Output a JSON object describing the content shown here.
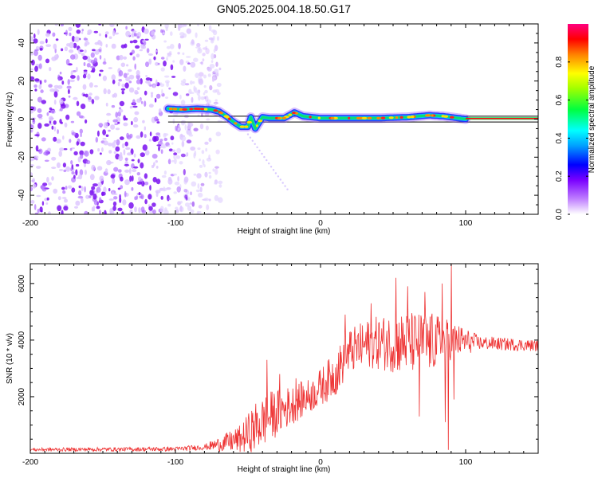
{
  "title": "GN05.2025.004.18.50.G17",
  "chart_data": [
    {
      "type": "heatmap",
      "xlabel": "Height of straight line (km)",
      "ylabel": "Frequency (Hz)",
      "xlim": [
        -200,
        150
      ],
      "ylim": [
        -50,
        50
      ],
      "xticks": [
        -200,
        -100,
        0,
        100
      ],
      "yticks": [
        -40,
        -20,
        0,
        20,
        40
      ],
      "colorbar": {
        "label": "Normalized spectral amplitude",
        "range": [
          0,
          1
        ],
        "ticks": [
          "0.0",
          "0.2",
          "0.4",
          "0.6",
          "0.8"
        ]
      },
      "noise_region_x": [
        -200,
        -77
      ],
      "signal_track": [
        {
          "x": -105,
          "f": 5.5
        },
        {
          "x": -95,
          "f": 5
        },
        {
          "x": -85,
          "f": 5.5
        },
        {
          "x": -75,
          "f": 5
        },
        {
          "x": -70,
          "f": 4
        },
        {
          "x": -65,
          "f": 1.5
        },
        {
          "x": -60,
          "f": -1.5
        },
        {
          "x": -55,
          "f": -4
        },
        {
          "x": -50,
          "f": -4
        },
        {
          "x": -48,
          "f": 1
        },
        {
          "x": -45,
          "f": -5
        },
        {
          "x": -40,
          "f": 1
        },
        {
          "x": -35,
          "f": 0.5
        },
        {
          "x": -25,
          "f": 0.5
        },
        {
          "x": -18,
          "f": 3.5
        },
        {
          "x": -12,
          "f": 1.5
        },
        {
          "x": 0,
          "f": 0.5
        },
        {
          "x": 20,
          "f": 0.5
        },
        {
          "x": 40,
          "f": 0.5
        },
        {
          "x": 60,
          "f": 1
        },
        {
          "x": 75,
          "f": 2
        },
        {
          "x": 85,
          "f": 1.5
        },
        {
          "x": 100,
          "f": 0
        },
        {
          "x": 150,
          "f": 0
        }
      ],
      "reference_lines_hz": [
        1.5,
        -1.5
      ]
    },
    {
      "type": "line",
      "xlabel": "Height of straight line (km)",
      "ylabel": "SNR (10 * v/v)",
      "xlim": [
        -200,
        150
      ],
      "ylim": [
        0,
        6700
      ],
      "xticks": [
        -200,
        -100,
        0,
        100
      ],
      "yticks": [
        2000,
        4000,
        6000
      ],
      "color": "#ee3333",
      "envelope": [
        {
          "x": -200,
          "mean": 130,
          "amp": 60
        },
        {
          "x": -100,
          "mean": 150,
          "amp": 80
        },
        {
          "x": -80,
          "mean": 220,
          "amp": 100
        },
        {
          "x": -70,
          "mean": 320,
          "amp": 250
        },
        {
          "x": -55,
          "mean": 500,
          "amp": 500
        },
        {
          "x": -45,
          "mean": 900,
          "amp": 900
        },
        {
          "x": -35,
          "mean": 1300,
          "amp": 900
        },
        {
          "x": -20,
          "mean": 1700,
          "amp": 700
        },
        {
          "x": -5,
          "mean": 2100,
          "amp": 600
        },
        {
          "x": 10,
          "mean": 2800,
          "amp": 800
        },
        {
          "x": 20,
          "mean": 3600,
          "amp": 800
        },
        {
          "x": 35,
          "mean": 3900,
          "amp": 900
        },
        {
          "x": 55,
          "mean": 3900,
          "amp": 1100
        },
        {
          "x": 75,
          "mean": 3900,
          "amp": 1100
        },
        {
          "x": 90,
          "mean": 4000,
          "amp": 700
        },
        {
          "x": 110,
          "mean": 3900,
          "amp": 250
        },
        {
          "x": 150,
          "mean": 3800,
          "amp": 200
        }
      ],
      "spikes": [
        {
          "x": -37,
          "y": 3300
        },
        {
          "x": -28,
          "y": 2800
        },
        {
          "x": -17,
          "y": 2650
        },
        {
          "x": 17,
          "y": 4900
        },
        {
          "x": 35,
          "y": 5300
        },
        {
          "x": 52,
          "y": 6200
        },
        {
          "x": 60,
          "y": 5900
        },
        {
          "x": 68,
          "y": 1300
        },
        {
          "x": 72,
          "y": 5700
        },
        {
          "x": 84,
          "y": 6000
        },
        {
          "x": 86,
          "y": 1100
        },
        {
          "x": 88,
          "y": 120
        },
        {
          "x": 90,
          "y": 6700
        },
        {
          "x": 92,
          "y": 1900
        }
      ]
    }
  ]
}
